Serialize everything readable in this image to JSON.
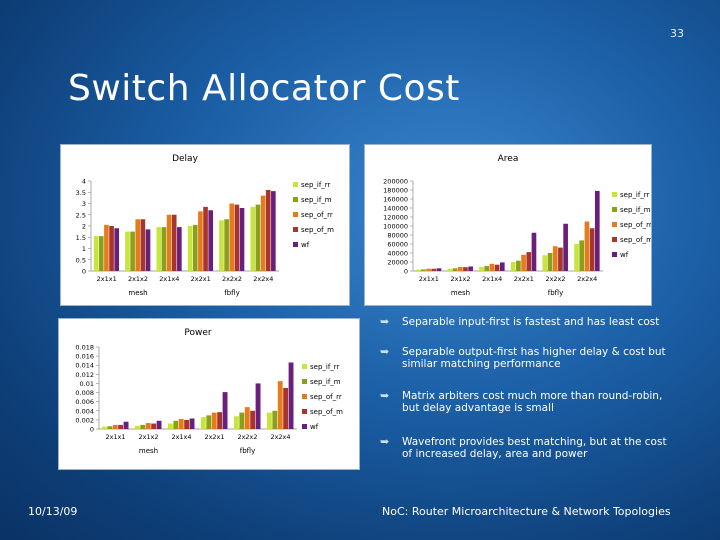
{
  "slide": {
    "number": "33",
    "title": "Switch Allocator Cost",
    "date": "10/13/09",
    "footer": "NoC: Router Microarchitecture & Network Topologies"
  },
  "bullets": [
    "Separable input-first is fastest and has least cost",
    "Separable output-first has higher delay & cost but similar matching performance",
    "Matrix arbiters cost much more than round-robin, but delay advantage is small",
    "Wavefront provides best matching, but at the cost of increased delay, area and power"
  ],
  "bullet_icon": "curved-arrow-icon",
  "colors": {
    "sep_if_rr": "#c8e53c",
    "sep_if_m": "#8aa01b",
    "sep_of_rr": "#e67b1c",
    "sep_of_m": "#a5352d",
    "wf": "#6b1f7c"
  },
  "chart_data": [
    {
      "id": "delay",
      "type": "bar",
      "title": "Delay",
      "categories": [
        "2x1x1",
        "2x1x2",
        "2x1x4",
        "2x2x1",
        "2x2x2",
        "2x2x4"
      ],
      "groups": [
        {
          "label": "mesh",
          "categories": [
            "2x1x1",
            "2x1x2",
            "2x1x4"
          ]
        },
        {
          "label": "fbfly",
          "categories": [
            "2x2x1",
            "2x2x2",
            "2x2x4"
          ]
        }
      ],
      "ylim": [
        0,
        4
      ],
      "yticks": [
        "0",
        "0.5",
        "1",
        "1.5",
        "2",
        "2.5",
        "3",
        "3.5",
        "4"
      ],
      "legend_position": "right",
      "series": [
        {
          "name": "sep_if_rr",
          "values": [
            1.55,
            1.75,
            1.95,
            2.0,
            2.25,
            2.85
          ]
        },
        {
          "name": "sep_if_m",
          "values": [
            1.55,
            1.75,
            1.95,
            2.05,
            2.3,
            2.95
          ]
        },
        {
          "name": "sep_of_rr",
          "values": [
            2.05,
            2.3,
            2.5,
            2.65,
            3.0,
            3.35
          ]
        },
        {
          "name": "sep_of_m",
          "values": [
            2.0,
            2.3,
            2.5,
            2.85,
            2.95,
            3.6
          ]
        },
        {
          "name": "wf",
          "values": [
            1.9,
            1.85,
            1.95,
            2.7,
            2.8,
            3.55
          ]
        }
      ]
    },
    {
      "id": "area",
      "type": "bar",
      "title": "Area",
      "categories": [
        "2x1x1",
        "2x1x2",
        "2x1x4",
        "2x2x1",
        "2x2x2",
        "2x2x4"
      ],
      "groups": [
        {
          "label": "mesh",
          "categories": [
            "2x1x1",
            "2x1x2",
            "2x1x4"
          ]
        },
        {
          "label": "fbfly",
          "categories": [
            "2x2x1",
            "2x2x2",
            "2x2x4"
          ]
        }
      ],
      "ylim": [
        0,
        200000
      ],
      "yticks": [
        "0",
        "20000",
        "40000",
        "60000",
        "80000",
        "100000",
        "120000",
        "140000",
        "160000",
        "180000",
        "200000"
      ],
      "legend_position": "right",
      "series": [
        {
          "name": "sep_if_rr",
          "values": [
            3000,
            5000,
            9000,
            20000,
            35000,
            60000
          ]
        },
        {
          "name": "sep_if_m",
          "values": [
            3500,
            6000,
            11000,
            23000,
            40000,
            68000
          ]
        },
        {
          "name": "sep_of_rr",
          "values": [
            5000,
            9000,
            16000,
            36000,
            55000,
            110000
          ]
        },
        {
          "name": "sep_of_m",
          "values": [
            5000,
            8500,
            14000,
            42000,
            52000,
            95000
          ]
        },
        {
          "name": "wf",
          "values": [
            6000,
            10000,
            19000,
            85000,
            105000,
            178000
          ]
        }
      ]
    },
    {
      "id": "power",
      "type": "bar",
      "title": "Power",
      "categories": [
        "2x1x1",
        "2x1x2",
        "2x1x4",
        "2x2x1",
        "2x2x2",
        "2x2x4"
      ],
      "groups": [
        {
          "label": "mesh",
          "categories": [
            "2x1x1",
            "2x1x2",
            "2x1x4"
          ]
        },
        {
          "label": "fbfly",
          "categories": [
            "2x2x1",
            "2x2x2",
            "2x2x4"
          ]
        }
      ],
      "ylim": [
        0,
        0.018
      ],
      "yticks": [
        "0",
        "0.002",
        "0.004",
        "0.006",
        "0.008",
        "0.01",
        "0.012",
        "0.014",
        "0.016",
        "0.018"
      ],
      "legend_position": "right",
      "series": [
        {
          "name": "sep_if_rr",
          "values": [
            0.0005,
            0.0007,
            0.0012,
            0.0026,
            0.0028,
            0.0036
          ]
        },
        {
          "name": "sep_if_m",
          "values": [
            0.0006,
            0.0009,
            0.0018,
            0.003,
            0.0036,
            0.004
          ]
        },
        {
          "name": "sep_of_rr",
          "values": [
            0.0009,
            0.0013,
            0.0022,
            0.0036,
            0.0048,
            0.0105
          ]
        },
        {
          "name": "sep_of_m",
          "values": [
            0.0009,
            0.0012,
            0.002,
            0.0037,
            0.004,
            0.009
          ]
        },
        {
          "name": "wf",
          "values": [
            0.0016,
            0.0018,
            0.0023,
            0.0081,
            0.01,
            0.0146
          ]
        }
      ]
    }
  ]
}
